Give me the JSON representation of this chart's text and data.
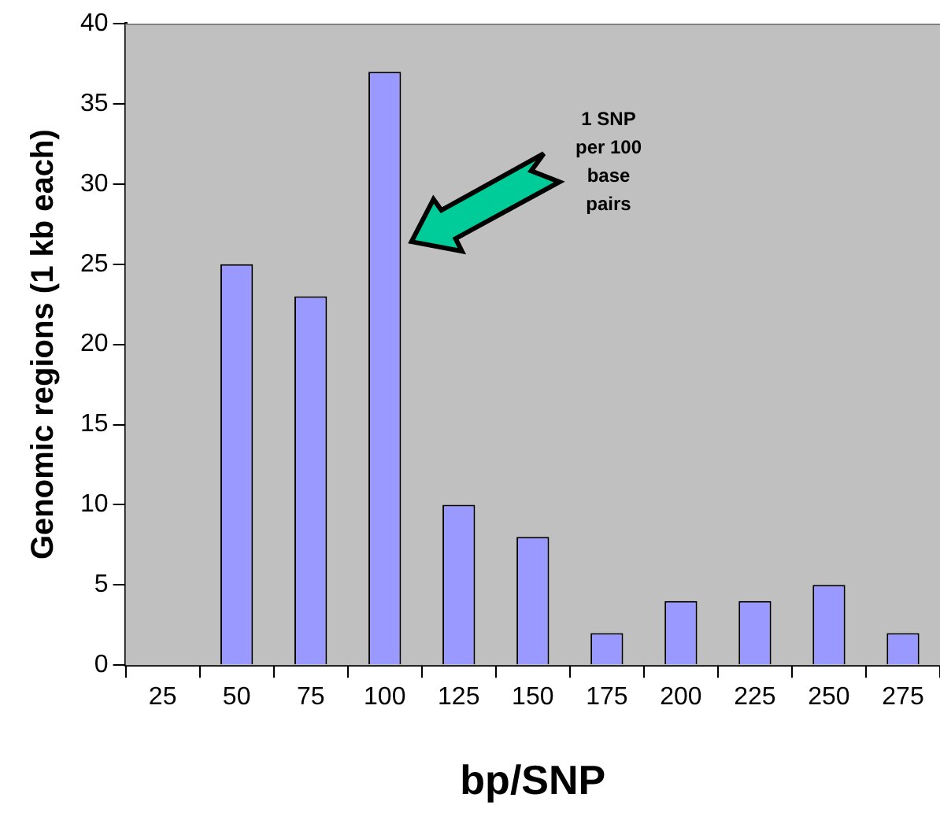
{
  "chart_data": {
    "type": "bar",
    "xlabel": "bp/SNP",
    "ylabel": "Genomic regions (1 kb each)",
    "categories": [
      "25",
      "50",
      "75",
      "100",
      "125",
      "150",
      "175",
      "200",
      "225",
      "250",
      "275"
    ],
    "values": [
      0,
      25,
      23,
      37,
      10,
      8,
      2,
      4,
      4,
      5,
      2
    ],
    "color": "#9999ff",
    "ylim": [
      0,
      40
    ],
    "yticks": [
      0,
      5,
      10,
      15,
      20,
      25,
      30,
      35,
      40
    ],
    "grid": false,
    "legend": false,
    "annotations": [
      "1 SNP per 100 base pairs"
    ]
  }
}
